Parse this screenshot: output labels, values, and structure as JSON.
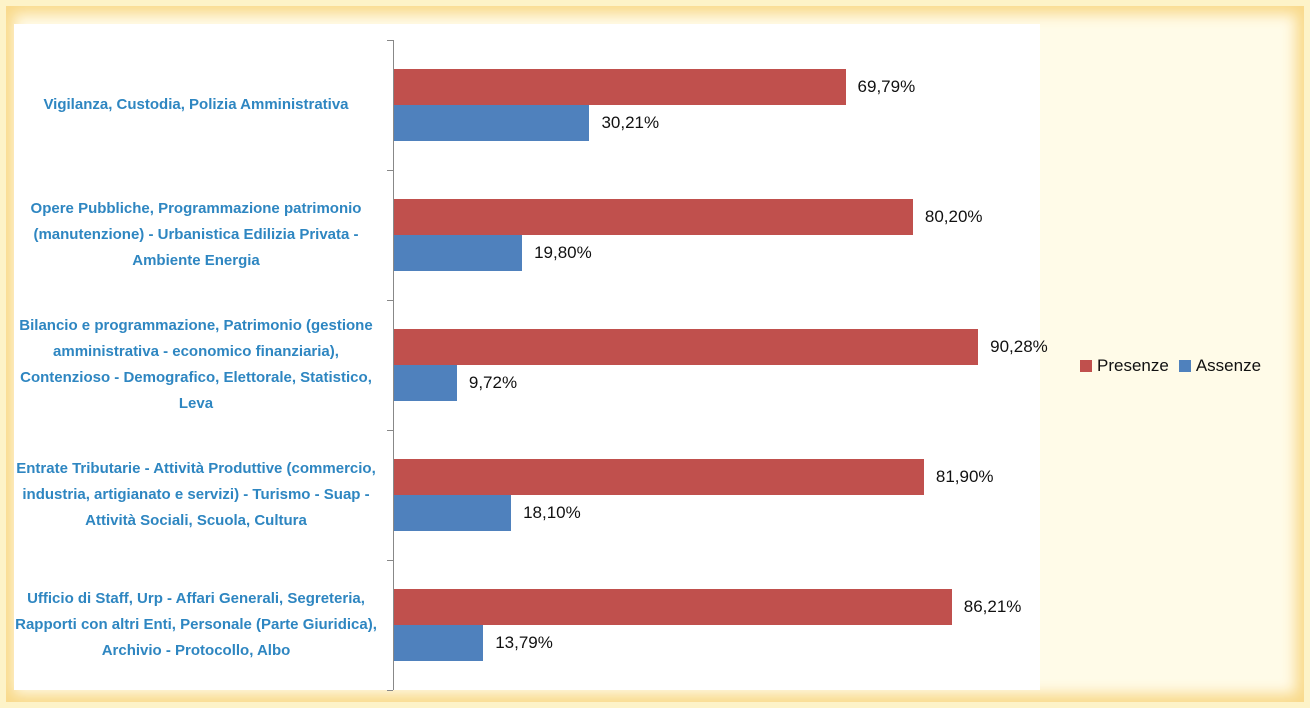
{
  "chart_data": {
    "type": "bar",
    "orientation": "horizontal",
    "legend": "right",
    "categories": [
      "Vigilanza, Custodia, Polizia Amministrativa",
      "Opere Pubbliche, Programmazione patrimonio (manutenzione) - Urbanistica Edilizia Privata - Ambiente Energia",
      "Bilancio e programmazione, Patrimonio (gestione amministrativa - economico finanziaria), Contenzioso - Demografico, Elettorale, Statistico, Leva",
      "Entrate Tributarie - Attività Produttive (commercio, industria, artigianato e servizi) - Turismo - Suap - Attività Sociali, Scuola, Cultura",
      "Ufficio di Staff, Urp - Affari Generali, Segreteria, Rapporti con altri Enti, Personale (Parte Giuridica), Archivio - Protocollo, Albo"
    ],
    "series": [
      {
        "name": "Presenze",
        "color": "#c0504d",
        "values": [
          69.79,
          80.2,
          90.28,
          81.9,
          86.21
        ],
        "value_labels": [
          "69,79%",
          "80,20%",
          "90,28%",
          "81,90%",
          "86,21%"
        ]
      },
      {
        "name": "Assenze",
        "color": "#4f81bd",
        "values": [
          30.21,
          19.8,
          9.72,
          18.1,
          13.79
        ],
        "value_labels": [
          "30,21%",
          "19,80%",
          "9,72%",
          "18,10%",
          "13,79%"
        ]
      }
    ]
  }
}
